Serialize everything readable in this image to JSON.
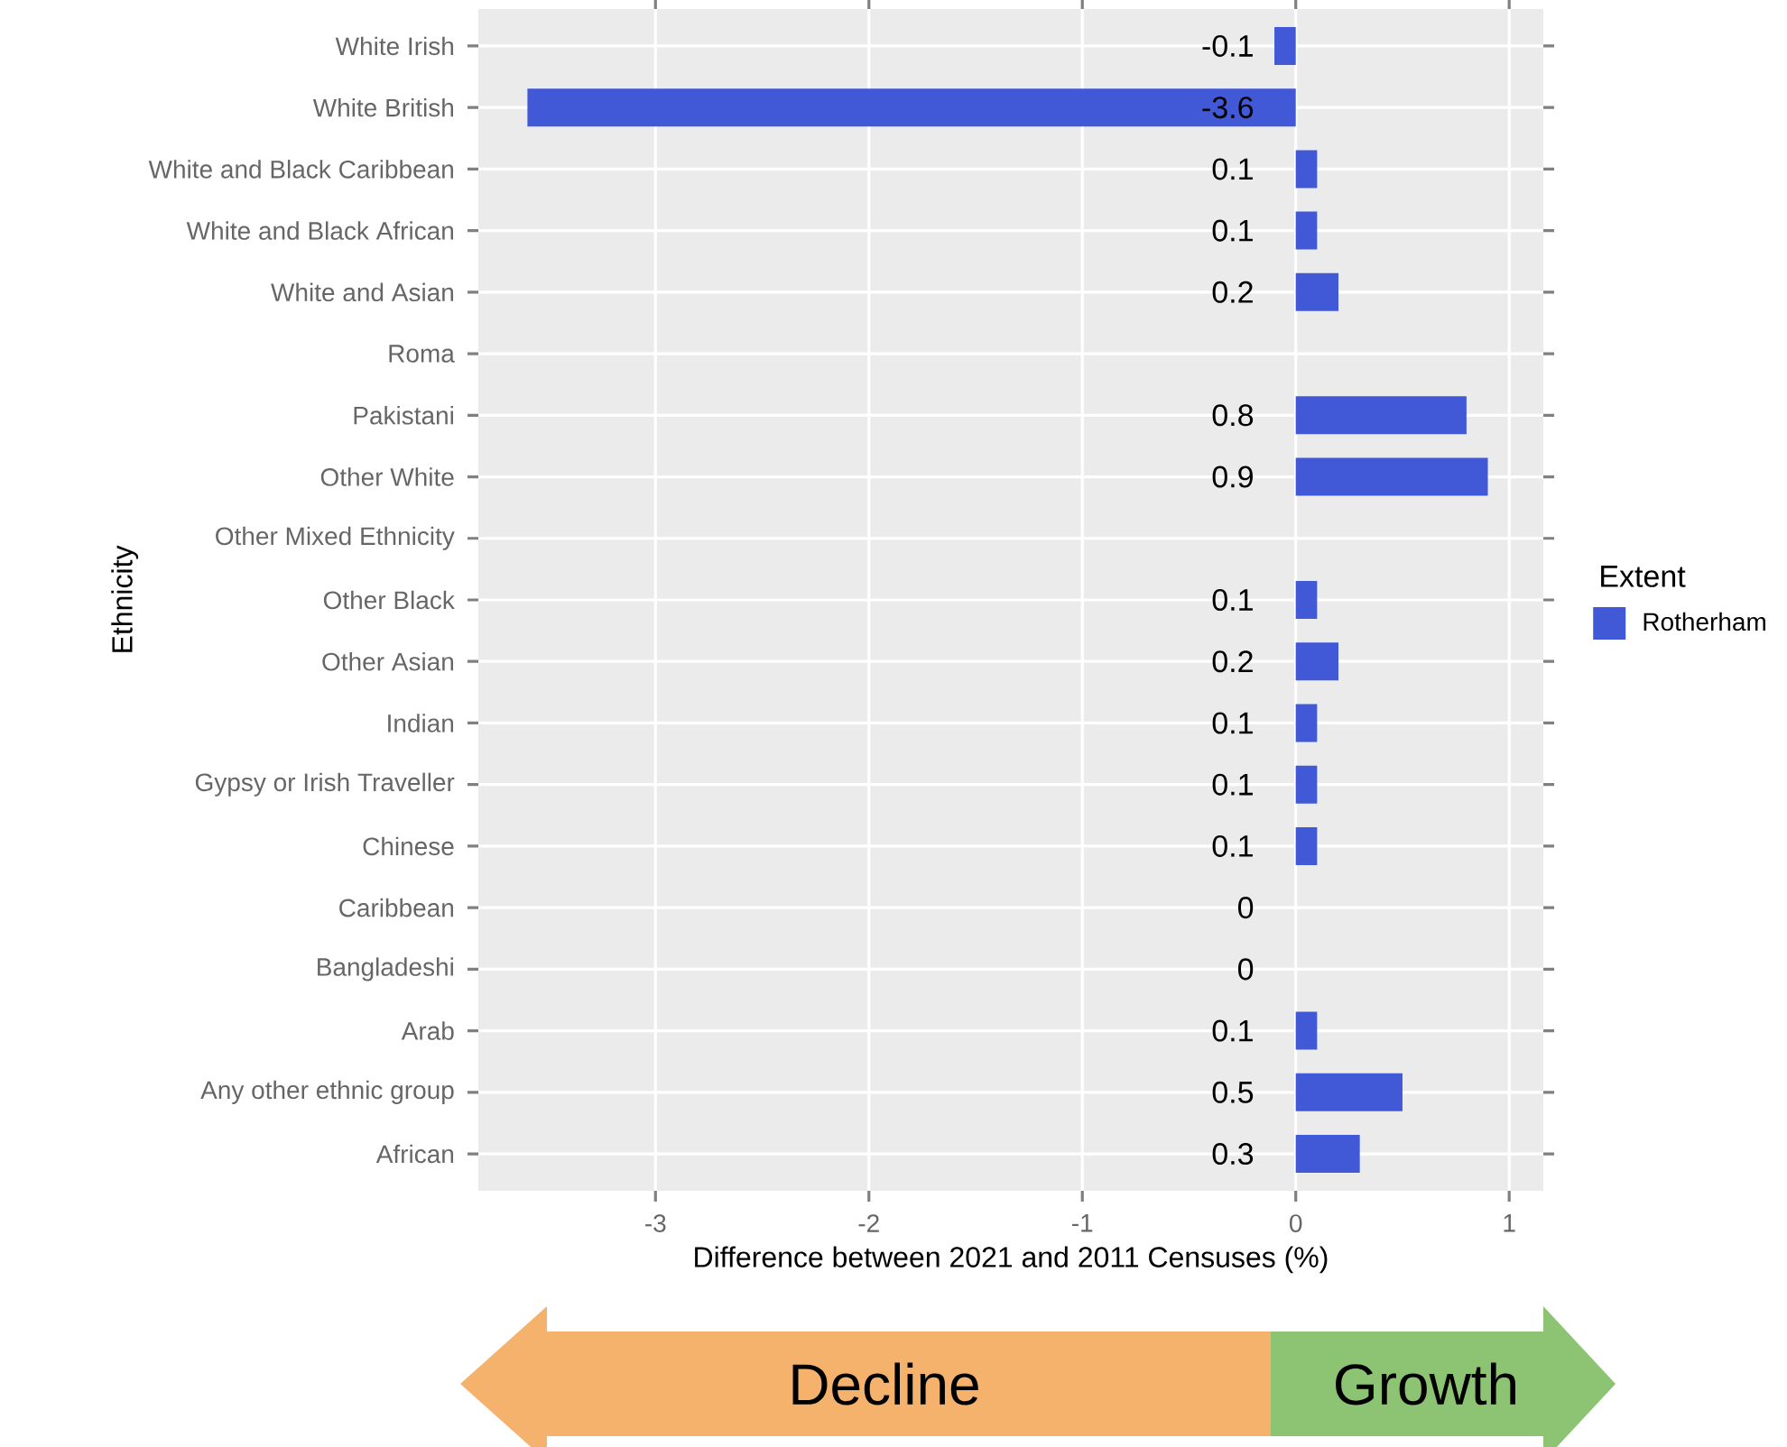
{
  "chart_data": {
    "type": "bar",
    "orientation": "horizontal",
    "xlabel": "Difference between 2021 and 2011 Censuses (%)",
    "ylabel": "Ethnicity",
    "legend_title": "Extent",
    "legend": "right",
    "grid": true,
    "data_labels": true,
    "categories": [
      "White Irish",
      "White British",
      "White and Black Caribbean",
      "White and Black African",
      "White and Asian",
      "Roma",
      "Pakistani",
      "Other White",
      "Other Mixed Ethnicity",
      "Other Black",
      "Other Asian",
      "Indian",
      "Gypsy or Irish Traveller",
      "Chinese",
      "Caribbean",
      "Bangladeshi",
      "Arab",
      "Any other ethnic group",
      "African"
    ],
    "series": [
      {
        "name": "Rotherham",
        "color": "#4159d6",
        "values": [
          -0.1,
          -3.6,
          0.1,
          0.1,
          0.2,
          null,
          0.8,
          0.9,
          null,
          0.1,
          0.2,
          0.1,
          0.1,
          0.1,
          0,
          0,
          0.1,
          0.5,
          0.3
        ]
      }
    ],
    "xlim": [
      -3.83,
      1.16
    ],
    "xticks": [
      -3,
      -2,
      -1,
      0,
      1
    ],
    "annotations": [
      "Decline",
      "Growth"
    ]
  }
}
